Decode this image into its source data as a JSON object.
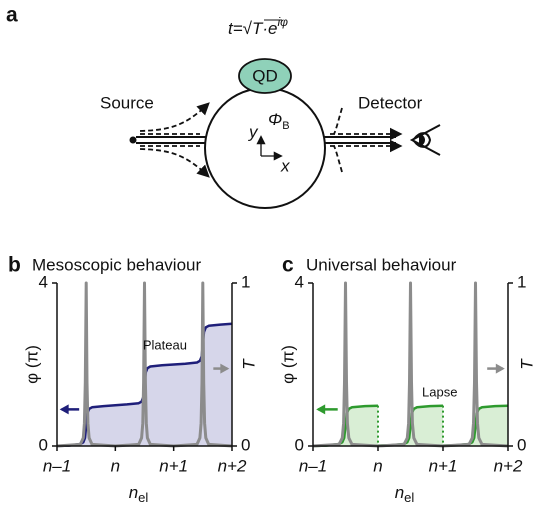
{
  "diagram": {
    "label": "a",
    "formula": "t=√T·e",
    "formula_sup": "iφ",
    "qd": "QD",
    "source": "Source",
    "detector": "Detector",
    "flux": "Φ",
    "flux_sub": "B",
    "y_axis": "y",
    "x_axis": "x"
  },
  "chart_data": [
    {
      "type": "line",
      "panel": "b",
      "title": "Mesoscopic behaviour",
      "x_label": "n",
      "x_label_sub": "el",
      "y_label": "φ (π)",
      "y2_label": "T",
      "annotation": "Plateau",
      "xlim": [
        -1,
        2
      ],
      "xticks": [
        {
          "value": -1,
          "label": "n–1"
        },
        {
          "value": 0,
          "label": "n"
        },
        {
          "value": 1,
          "label": "n+1"
        },
        {
          "value": 2,
          "label": "n+2"
        }
      ],
      "ylim": [
        0,
        4
      ],
      "yticks": [
        0,
        4
      ],
      "y2lim": [
        0,
        1
      ],
      "y2ticks": [
        0,
        1
      ],
      "series": [
        {
          "color": "#1f1f7a",
          "fill": "#d6d6ea",
          "x": [
            -1,
            -0.8,
            -0.6,
            -0.55,
            -0.52,
            -0.5,
            -0.48,
            -0.45,
            -0.4,
            -0.2,
            0,
            0.2,
            0.4,
            0.45,
            0.48,
            0.5,
            0.52,
            0.55,
            0.6,
            0.8,
            1,
            1.2,
            1.4,
            1.45,
            1.48,
            1.5,
            1.52,
            1.55,
            1.6,
            1.8,
            2
          ],
          "values": [
            0,
            0.01,
            0.05,
            0.09,
            0.2,
            0.5,
            0.8,
            0.91,
            0.95,
            0.98,
            1.0,
            1.02,
            1.05,
            1.09,
            1.2,
            1.5,
            1.8,
            1.91,
            1.95,
            1.98,
            2.0,
            2.02,
            2.05,
            2.09,
            2.2,
            2.5,
            2.8,
            2.91,
            2.95,
            2.98,
            3.0
          ]
        },
        {
          "color": "#8c8c8c",
          "axis": "y2",
          "x": [
            -1,
            -0.6,
            -0.55,
            -0.53,
            -0.515,
            -0.5,
            -0.485,
            -0.47,
            -0.45,
            -0.4,
            0,
            0.4,
            0.45,
            0.47,
            0.485,
            0.5,
            0.515,
            0.53,
            0.55,
            0.6,
            1,
            1.4,
            1.45,
            1.47,
            1.485,
            1.5,
            1.515,
            1.53,
            1.55,
            1.6,
            2
          ],
          "values": [
            0,
            0.01,
            0.05,
            0.14,
            0.39,
            1,
            0.39,
            0.14,
            0.05,
            0.01,
            0,
            0.01,
            0.05,
            0.14,
            0.39,
            1,
            0.39,
            0.14,
            0.05,
            0.01,
            0,
            0.01,
            0.05,
            0.14,
            0.39,
            1,
            0.39,
            0.14,
            0.05,
            0.01,
            0
          ]
        }
      ]
    },
    {
      "type": "line",
      "panel": "c",
      "title": "Universal behaviour",
      "x_label": "n",
      "x_label_sub": "el",
      "y_label": "φ (π)",
      "y2_label": "T",
      "annotation": "Lapse",
      "xlim": [
        -1,
        2
      ],
      "xticks": [
        {
          "value": -1,
          "label": "n–1"
        },
        {
          "value": 0,
          "label": "n"
        },
        {
          "value": 1,
          "label": "n+1"
        },
        {
          "value": 2,
          "label": "n+2"
        }
      ],
      "ylim": [
        0,
        4
      ],
      "yticks": [
        0,
        4
      ],
      "y2lim": [
        0,
        1
      ],
      "y2ticks": [
        0,
        1
      ],
      "series": [
        {
          "color": "#2e9a2e",
          "fill": "#d9eed5",
          "x": [
            -1,
            -0.8,
            -0.6,
            -0.55,
            -0.52,
            -0.5,
            -0.48,
            -0.45,
            -0.4,
            -0.2,
            0,
            0,
            0,
            0.2,
            0.4,
            0.45,
            0.48,
            0.5,
            0.52,
            0.55,
            0.6,
            0.8,
            1,
            1,
            1,
            1.2,
            1.4,
            1.45,
            1.48,
            1.5,
            1.52,
            1.55,
            1.6,
            1.8,
            2
          ],
          "values": [
            0,
            0.01,
            0.05,
            0.09,
            0.2,
            0.5,
            0.8,
            0.91,
            0.95,
            0.98,
            0.99,
            null,
            0.01,
            0.02,
            0.05,
            0.09,
            0.2,
            0.5,
            0.8,
            0.91,
            0.95,
            0.98,
            0.99,
            null,
            0.01,
            0.02,
            0.05,
            0.09,
            0.2,
            0.5,
            0.8,
            0.91,
            0.95,
            0.98,
            0.99
          ]
        },
        {
          "color": "#8c8c8c",
          "axis": "y2",
          "x": [
            -1,
            -0.6,
            -0.55,
            -0.53,
            -0.515,
            -0.5,
            -0.485,
            -0.47,
            -0.45,
            -0.4,
            0,
            0.4,
            0.45,
            0.47,
            0.485,
            0.5,
            0.515,
            0.53,
            0.55,
            0.6,
            1,
            1.4,
            1.45,
            1.47,
            1.485,
            1.5,
            1.515,
            1.53,
            1.55,
            1.6,
            2
          ],
          "values": [
            0,
            0.01,
            0.05,
            0.14,
            0.39,
            1,
            0.39,
            0.14,
            0.05,
            0.01,
            0,
            0.01,
            0.05,
            0.14,
            0.39,
            1,
            0.39,
            0.14,
            0.05,
            0.01,
            0,
            0.01,
            0.05,
            0.14,
            0.39,
            1,
            0.39,
            0.14,
            0.05,
            0.01,
            0
          ]
        }
      ]
    }
  ]
}
